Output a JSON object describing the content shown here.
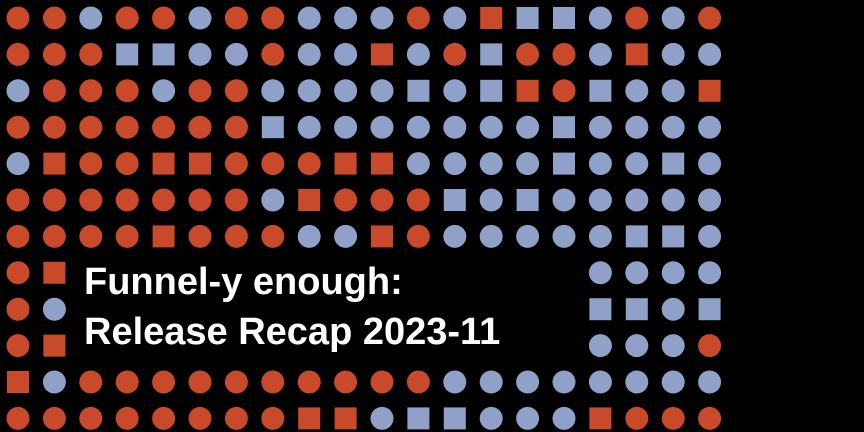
{
  "title": {
    "line1": "Funnel-y enough:",
    "line2": "Release Recap 2023-11"
  },
  "colors": {
    "background": "#000000",
    "orange": "#C9492B",
    "blue": "#8FA0C9",
    "text": "#FFFFFF"
  },
  "pattern": {
    "legend": "o = orange circle, O = orange square, b = blue circle, B = blue square, . = empty",
    "rows": [
      "oobooboobbbobOBBbobo",
      "oooBBbbobbOboBoobObb",
      "boooboobbbbBbBOoBbbO",
      "oooooooBbbbbbbbBbbbb",
      "bOooOOoooOObbbbBbbBb",
      "ooooooobOoooBbBbbbbb",
      "ooooOooobbOobbbbbBBb",
      "oO.............bbbbb",
      "ob.............oBBbB",
      "oO.............Bbbbo",
      "Oboooooooooobbbbbbbb",
      "ooooooooOObBBbbbOooo"
    ]
  }
}
